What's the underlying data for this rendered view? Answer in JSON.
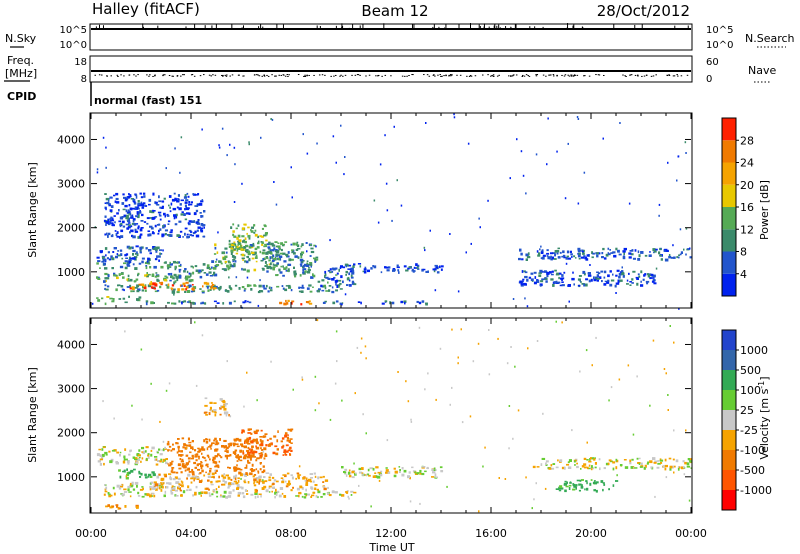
{
  "header": {
    "station": "Halley (fitACF)",
    "beam": "Beam 12",
    "date": "28/Oct/2012"
  },
  "strips": {
    "nsky": {
      "label": "N.Sky",
      "top": "10^5",
      "bottom": "10^0"
    },
    "nsearch": {
      "label": "N.Search",
      "top": "10^5",
      "bottom": "10^0"
    },
    "freq": {
      "label_line1": "Freq.",
      "label_line2": "[MHz]",
      "top": "18",
      "bottom": "8"
    },
    "nave": {
      "label": "Nave",
      "top": "60",
      "bottom": "0"
    },
    "cpid": {
      "label": "CPID",
      "text": "normal (fast) 151"
    }
  },
  "colors": {
    "power": [
      "#0022ee",
      "#2255cc",
      "#3a8a6a",
      "#55aa55",
      "#e8c800",
      "#f5a300",
      "#f07a00",
      "#ff2000"
    ],
    "velocity": [
      "#2244cc",
      "#3366aa",
      "#33aa55",
      "#66cc33",
      "#c8c8c8",
      "#f5a300",
      "#f07a00",
      "#ff5500",
      "#ff0000"
    ]
  },
  "chart_data": [
    {
      "type": "heatmap",
      "title": "",
      "xlabel": "",
      "ylabel": "Slant Range [km]",
      "x_range_hours": [
        0,
        24
      ],
      "ylim": [
        180,
        4600
      ],
      "x_ticks": [
        "00:00",
        "04:00",
        "08:00",
        "12:00",
        "16:00",
        "20:00",
        "00:00"
      ],
      "y_ticks": [
        1000,
        2000,
        3000,
        4000
      ],
      "colorbar": {
        "label": "Power [dB]",
        "range": [
          0,
          32
        ],
        "ticks": [
          4,
          8,
          12,
          16,
          20,
          24,
          28
        ]
      },
      "regions": [
        {
          "t": [
            0.5,
            4.5
          ],
          "r": [
            300,
            360
          ],
          "power": 10
        },
        {
          "t": [
            0.2,
            2.0
          ],
          "r": [
            380,
            460
          ],
          "power": 14
        },
        {
          "t": [
            3.5,
            6.5
          ],
          "r": [
            300,
            360
          ],
          "power": 6
        },
        {
          "t": [
            7.5,
            8.8
          ],
          "r": [
            280,
            380
          ],
          "power": 26
        },
        {
          "t": [
            9.0,
            13.5
          ],
          "r": [
            300,
            360
          ],
          "power": 6
        },
        {
          "t": [
            0.5,
            10.0
          ],
          "r": [
            560,
            720
          ],
          "power": 10
        },
        {
          "t": [
            1.5,
            5.0
          ],
          "r": [
            620,
            780
          ],
          "power": 26
        },
        {
          "t": [
            0.2,
            4.0
          ],
          "r": [
            780,
            1000
          ],
          "power": 12
        },
        {
          "t": [
            0.2,
            3.5
          ],
          "r": [
            1100,
            1250
          ],
          "power": 10
        },
        {
          "t": [
            0.2,
            2.8
          ],
          "r": [
            1250,
            1600
          ],
          "power": 6
        },
        {
          "t": [
            3.0,
            5.0
          ],
          "r": [
            900,
            1200
          ],
          "power": 10
        },
        {
          "t": [
            4.8,
            7.5
          ],
          "r": [
            1050,
            1700
          ],
          "power": 12
        },
        {
          "t": [
            5.5,
            7.0
          ],
          "r": [
            1400,
            2100
          ],
          "power": 14
        },
        {
          "t": [
            7.0,
            9.0
          ],
          "r": [
            900,
            1700
          ],
          "power": 10
        },
        {
          "t": [
            9.0,
            10.5
          ],
          "r": [
            700,
            1050
          ],
          "power": 8
        },
        {
          "t": [
            9.5,
            14.0
          ],
          "r": [
            1000,
            1200
          ],
          "power": 5
        },
        {
          "t": [
            0.5,
            4.5
          ],
          "r": [
            1800,
            2800
          ],
          "power": 4
        },
        {
          "t": [
            17.0,
            24.0
          ],
          "r": [
            1300,
            1550
          ],
          "power": 6
        },
        {
          "t": [
            17.0,
            22.5
          ],
          "r": [
            700,
            1050
          ],
          "power": 5
        }
      ]
    },
    {
      "type": "heatmap",
      "title": "",
      "xlabel": "Time UT",
      "ylabel": "Slant Range [km]",
      "x_range_hours": [
        0,
        24
      ],
      "ylim": [
        180,
        4600
      ],
      "x_ticks": [
        "00:00",
        "04:00",
        "08:00",
        "12:00",
        "16:00",
        "20:00",
        "00:00"
      ],
      "y_ticks": [
        1000,
        2000,
        3000,
        4000
      ],
      "colorbar": {
        "label": "Velocity [m s^-1]",
        "ticks": [
          "1000",
          "500",
          "100",
          "25",
          "-25",
          "-100",
          "-500",
          "-1000"
        ]
      },
      "regions": [
        {
          "t": [
            0.3,
            2.0
          ],
          "r": [
            300,
            380
          ],
          "velocity": -100
        },
        {
          "t": [
            0.5,
            10.5
          ],
          "r": [
            560,
            700
          ],
          "velocity": 0
        },
        {
          "t": [
            0.5,
            3.5
          ],
          "r": [
            720,
            900
          ],
          "velocity": 0
        },
        {
          "t": [
            1.0,
            2.5
          ],
          "r": [
            1000,
            1200
          ],
          "velocity": 150
        },
        {
          "t": [
            2.5,
            9.5
          ],
          "r": [
            700,
            1100
          ],
          "velocity": -50
        },
        {
          "t": [
            3.0,
            7.0
          ],
          "r": [
            1100,
            1900
          ],
          "velocity": -200
        },
        {
          "t": [
            6.0,
            8.0
          ],
          "r": [
            1500,
            2100
          ],
          "velocity": -300
        },
        {
          "t": [
            0.2,
            3.0
          ],
          "r": [
            1300,
            1700
          ],
          "velocity": 0
        },
        {
          "t": [
            4.5,
            5.5
          ],
          "r": [
            2400,
            2800
          ],
          "velocity": -50
        },
        {
          "t": [
            10.0,
            14.0
          ],
          "r": [
            1000,
            1250
          ],
          "velocity": 0
        },
        {
          "t": [
            17.5,
            24.0
          ],
          "r": [
            1200,
            1450
          ],
          "velocity": 0
        },
        {
          "t": [
            18.5,
            21.0
          ],
          "r": [
            700,
            950
          ],
          "velocity": 150
        }
      ]
    }
  ]
}
